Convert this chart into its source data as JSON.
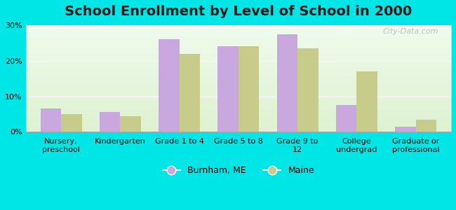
{
  "title": "School Enrollment by Level of School in 2000",
  "categories": [
    "Nursery,\npreschool",
    "Kindergarten",
    "Grade 1 to 4",
    "Grade 5 to 8",
    "Grade 9 to\n12",
    "College\nundergrad",
    "Graduate or\nprofessional"
  ],
  "burnham_values": [
    6.5,
    5.5,
    26.0,
    24.0,
    27.5,
    7.5,
    1.5
  ],
  "maine_values": [
    5.0,
    4.5,
    22.0,
    24.0,
    23.5,
    17.0,
    3.5
  ],
  "burnham_color": "#c9a8e0",
  "maine_color": "#c8cc8a",
  "background_color": "#00e5e5",
  "plot_bg_color": "#e8f5e0",
  "ylim": [
    0,
    30
  ],
  "yticks": [
    0,
    10,
    20,
    30
  ],
  "bar_width": 0.35,
  "legend_burnham": "Burnham, ME",
  "legend_maine": "Maine",
  "title_fontsize": 14,
  "tick_fontsize": 8,
  "legend_fontsize": 9,
  "watermark": "City-Data.com"
}
